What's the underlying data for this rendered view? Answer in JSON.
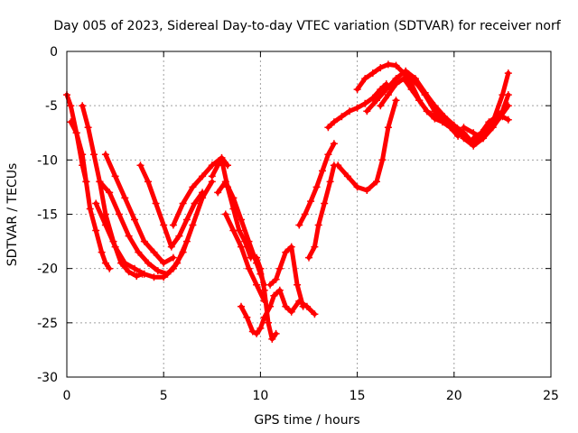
{
  "chart_data": {
    "type": "scatter",
    "title": "Day 005 of 2023, Sidereal Day-to-day VTEC variation (SDTVAR) for receiver norf",
    "xlabel": "GPS time / hours",
    "ylabel": "SDTVAR / TECUs",
    "xlim": [
      0,
      25
    ],
    "ylim": [
      -30,
      0
    ],
    "xticks": [
      0,
      5,
      10,
      15,
      20,
      25
    ],
    "yticks": [
      0,
      -5,
      -10,
      -15,
      -20,
      -25,
      -30
    ],
    "xtick_labels": [
      "0",
      "5",
      "10",
      "15",
      "20",
      "25"
    ],
    "ytick_labels": [
      "0",
      "-5",
      "-10",
      "-15",
      "-20",
      "-25",
      "-30"
    ],
    "grid": true,
    "marker": "+",
    "color": "#ff0000",
    "series": [
      {
        "x": [
          0,
          0.2,
          0.5,
          0.8,
          1.0
        ],
        "y": [
          -4.0,
          -5.0,
          -7.5,
          -10.5,
          -12.0
        ]
      },
      {
        "x": [
          0.2,
          0.5,
          0.8,
          1.0,
          1.2,
          1.5,
          1.8,
          2.0,
          2.2
        ],
        "y": [
          -6.5,
          -7.5,
          -9.5,
          -12.0,
          -14.5,
          -16.5,
          -18.5,
          -19.5,
          -20.0
        ]
      },
      {
        "x": [
          0.8,
          1.1,
          1.4,
          1.7,
          2.0,
          2.4,
          2.8,
          3.2,
          3.6,
          3.9
        ],
        "y": [
          -5.0,
          -7.0,
          -9.5,
          -12.0,
          -15.0,
          -17.5,
          -19.5,
          -20.3,
          -20.7,
          -20.5
        ]
      },
      {
        "x": [
          2.0,
          2.5,
          3.0,
          3.5,
          4.0,
          4.5,
          5.0,
          5.5
        ],
        "y": [
          -9.5,
          -11.5,
          -13.5,
          -15.5,
          -17.5,
          -18.5,
          -19.5,
          -19.0
        ]
      },
      {
        "x": [
          1.7,
          2.2,
          2.7,
          3.2,
          3.7,
          4.2,
          4.7,
          5.2,
          5.7,
          6.2
        ],
        "y": [
          -12.0,
          -13.0,
          -15.0,
          -17.0,
          -18.5,
          -19.5,
          -20.2,
          -20.5,
          -19.5,
          -17.5
        ]
      },
      {
        "x": [
          1.5,
          2.0,
          2.5,
          3.0,
          3.5,
          4.0,
          4.5,
          5.0,
          5.5,
          6.0,
          6.5,
          7.0,
          7.5
        ],
        "y": [
          -14.0,
          -16.0,
          -18.0,
          -19.5,
          -20.0,
          -20.5,
          -20.8,
          -20.8,
          -20.0,
          -18.5,
          -16.0,
          -13.5,
          -12.0
        ]
      },
      {
        "x": [
          3.8,
          4.2,
          4.6,
          5.0,
          5.4,
          5.8,
          6.2,
          6.6,
          7.0
        ],
        "y": [
          -10.5,
          -12.0,
          -14.0,
          -16.0,
          -18.0,
          -17.0,
          -15.5,
          -14.0,
          -13.0
        ]
      },
      {
        "x": [
          5.5,
          6.0,
          6.5,
          7.0,
          7.5,
          8.0,
          8.3
        ],
        "y": [
          -16.0,
          -14.0,
          -12.5,
          -11.5,
          -10.5,
          -9.8,
          -10.5
        ]
      },
      {
        "x": [
          7.5,
          7.8,
          8.0,
          8.3,
          8.6,
          8.9,
          9.2,
          9.5
        ],
        "y": [
          -11.5,
          -10.5,
          -10.0,
          -12.5,
          -14.5,
          -16.5,
          -17.5,
          -19.0
        ]
      },
      {
        "x": [
          7.8,
          8.2,
          8.6,
          9.0,
          9.4,
          9.8,
          10.0,
          10.2
        ],
        "y": [
          -13.0,
          -12.0,
          -13.5,
          -15.5,
          -17.5,
          -19.5,
          -20.5,
          -21.5
        ]
      },
      {
        "x": [
          8.2,
          8.6,
          9.0,
          9.4,
          9.8,
          10.2
        ],
        "y": [
          -15.0,
          -16.5,
          -18.0,
          -20.0,
          -21.5,
          -23.0
        ]
      },
      {
        "x": [
          9.0,
          9.3,
          9.6,
          9.8,
          10.0,
          10.2,
          10.5,
          10.7
        ],
        "y": [
          -23.5,
          -24.5,
          -25.8,
          -26.0,
          -25.5,
          -24.5,
          -23.5,
          -22.5
        ]
      },
      {
        "x": [
          9.8,
          10.0,
          10.2,
          10.4,
          10.6,
          10.8
        ],
        "y": [
          -19.0,
          -20.0,
          -22.0,
          -25.0,
          -26.5,
          -26.0
        ]
      },
      {
        "x": [
          10.5,
          10.8,
          11.0,
          11.3,
          11.6,
          11.9,
          12.2
        ],
        "y": [
          -21.5,
          -21.0,
          -20.0,
          -18.5,
          -18.0,
          -21.5,
          -23.5
        ]
      },
      {
        "x": [
          10.7,
          11.0,
          11.3,
          11.6,
          12.0,
          12.4,
          12.8
        ],
        "y": [
          -22.5,
          -22.0,
          -23.5,
          -24.0,
          -23.0,
          -23.5,
          -24.2
        ]
      },
      {
        "x": [
          12.0,
          12.3,
          12.6,
          12.9,
          13.2,
          13.5,
          13.8
        ],
        "y": [
          -16.0,
          -15.0,
          -13.8,
          -12.5,
          -11.0,
          -9.5,
          -8.5
        ]
      },
      {
        "x": [
          12.5,
          12.8,
          13.0,
          13.3,
          13.6,
          13.8
        ],
        "y": [
          -19.0,
          -18.0,
          -16.0,
          -14.0,
          -12.0,
          -10.5
        ]
      },
      {
        "x": [
          13.5,
          13.8,
          14.2,
          14.6,
          15.0,
          15.4,
          15.8,
          16.2,
          16.5
        ],
        "y": [
          -7.0,
          -6.5,
          -6.0,
          -5.5,
          -5.2,
          -4.8,
          -4.3,
          -3.5,
          -3.0
        ]
      },
      {
        "x": [
          14.0,
          14.5,
          15.0,
          15.5,
          16.0,
          16.3,
          16.6,
          17.0
        ],
        "y": [
          -10.5,
          -11.5,
          -12.5,
          -12.8,
          -12.0,
          -10.0,
          -7.0,
          -4.5
        ]
      },
      {
        "x": [
          15.0,
          15.4,
          15.8,
          16.2,
          16.6,
          17.0,
          17.4,
          17.8,
          18.2,
          18.6,
          19.0
        ],
        "y": [
          -3.5,
          -2.5,
          -2.0,
          -1.5,
          -1.2,
          -1.3,
          -2.0,
          -3.0,
          -4.5,
          -5.5,
          -6.0
        ]
      },
      {
        "x": [
          15.5,
          16.0,
          16.5,
          17.0,
          17.5,
          18.0,
          18.5,
          19.0,
          19.5,
          20.0,
          20.5,
          21.0
        ],
        "y": [
          -5.5,
          -4.5,
          -3.5,
          -2.5,
          -1.8,
          -2.5,
          -3.8,
          -5.0,
          -6.0,
          -6.8,
          -7.5,
          -8.5
        ]
      },
      {
        "x": [
          16.2,
          16.6,
          17.0,
          17.4,
          17.8,
          18.2,
          18.6,
          19.0,
          19.4,
          19.8,
          20.2
        ],
        "y": [
          -5.0,
          -4.0,
          -3.0,
          -2.5,
          -3.5,
          -4.5,
          -5.5,
          -6.2,
          -6.5,
          -7.0,
          -7.8
        ]
      },
      {
        "x": [
          17.5,
          18.0,
          18.5,
          19.0,
          19.5,
          20.0,
          20.5,
          21.0,
          21.5,
          22.0,
          22.5,
          22.8
        ],
        "y": [
          -2.0,
          -2.8,
          -4.0,
          -5.5,
          -6.5,
          -7.0,
          -8.0,
          -8.7,
          -8.0,
          -6.5,
          -4.0,
          -2.0
        ]
      },
      {
        "x": [
          19.0,
          19.5,
          20.0,
          20.5,
          21.0,
          21.5,
          22.0,
          22.5,
          22.8
        ],
        "y": [
          -6.0,
          -6.5,
          -7.0,
          -7.5,
          -8.5,
          -7.8,
          -6.5,
          -5.5,
          -4.0
        ]
      },
      {
        "x": [
          20.5,
          21.0,
          21.5,
          22.0,
          22.4,
          22.8
        ],
        "y": [
          -7.0,
          -7.5,
          -8.0,
          -7.0,
          -6.0,
          -5.0
        ]
      },
      {
        "x": [
          21.0,
          21.4,
          21.8,
          22.2,
          22.5,
          22.8
        ],
        "y": [
          -8.0,
          -7.5,
          -6.5,
          -6.0,
          -6.0,
          -6.3
        ]
      }
    ]
  }
}
